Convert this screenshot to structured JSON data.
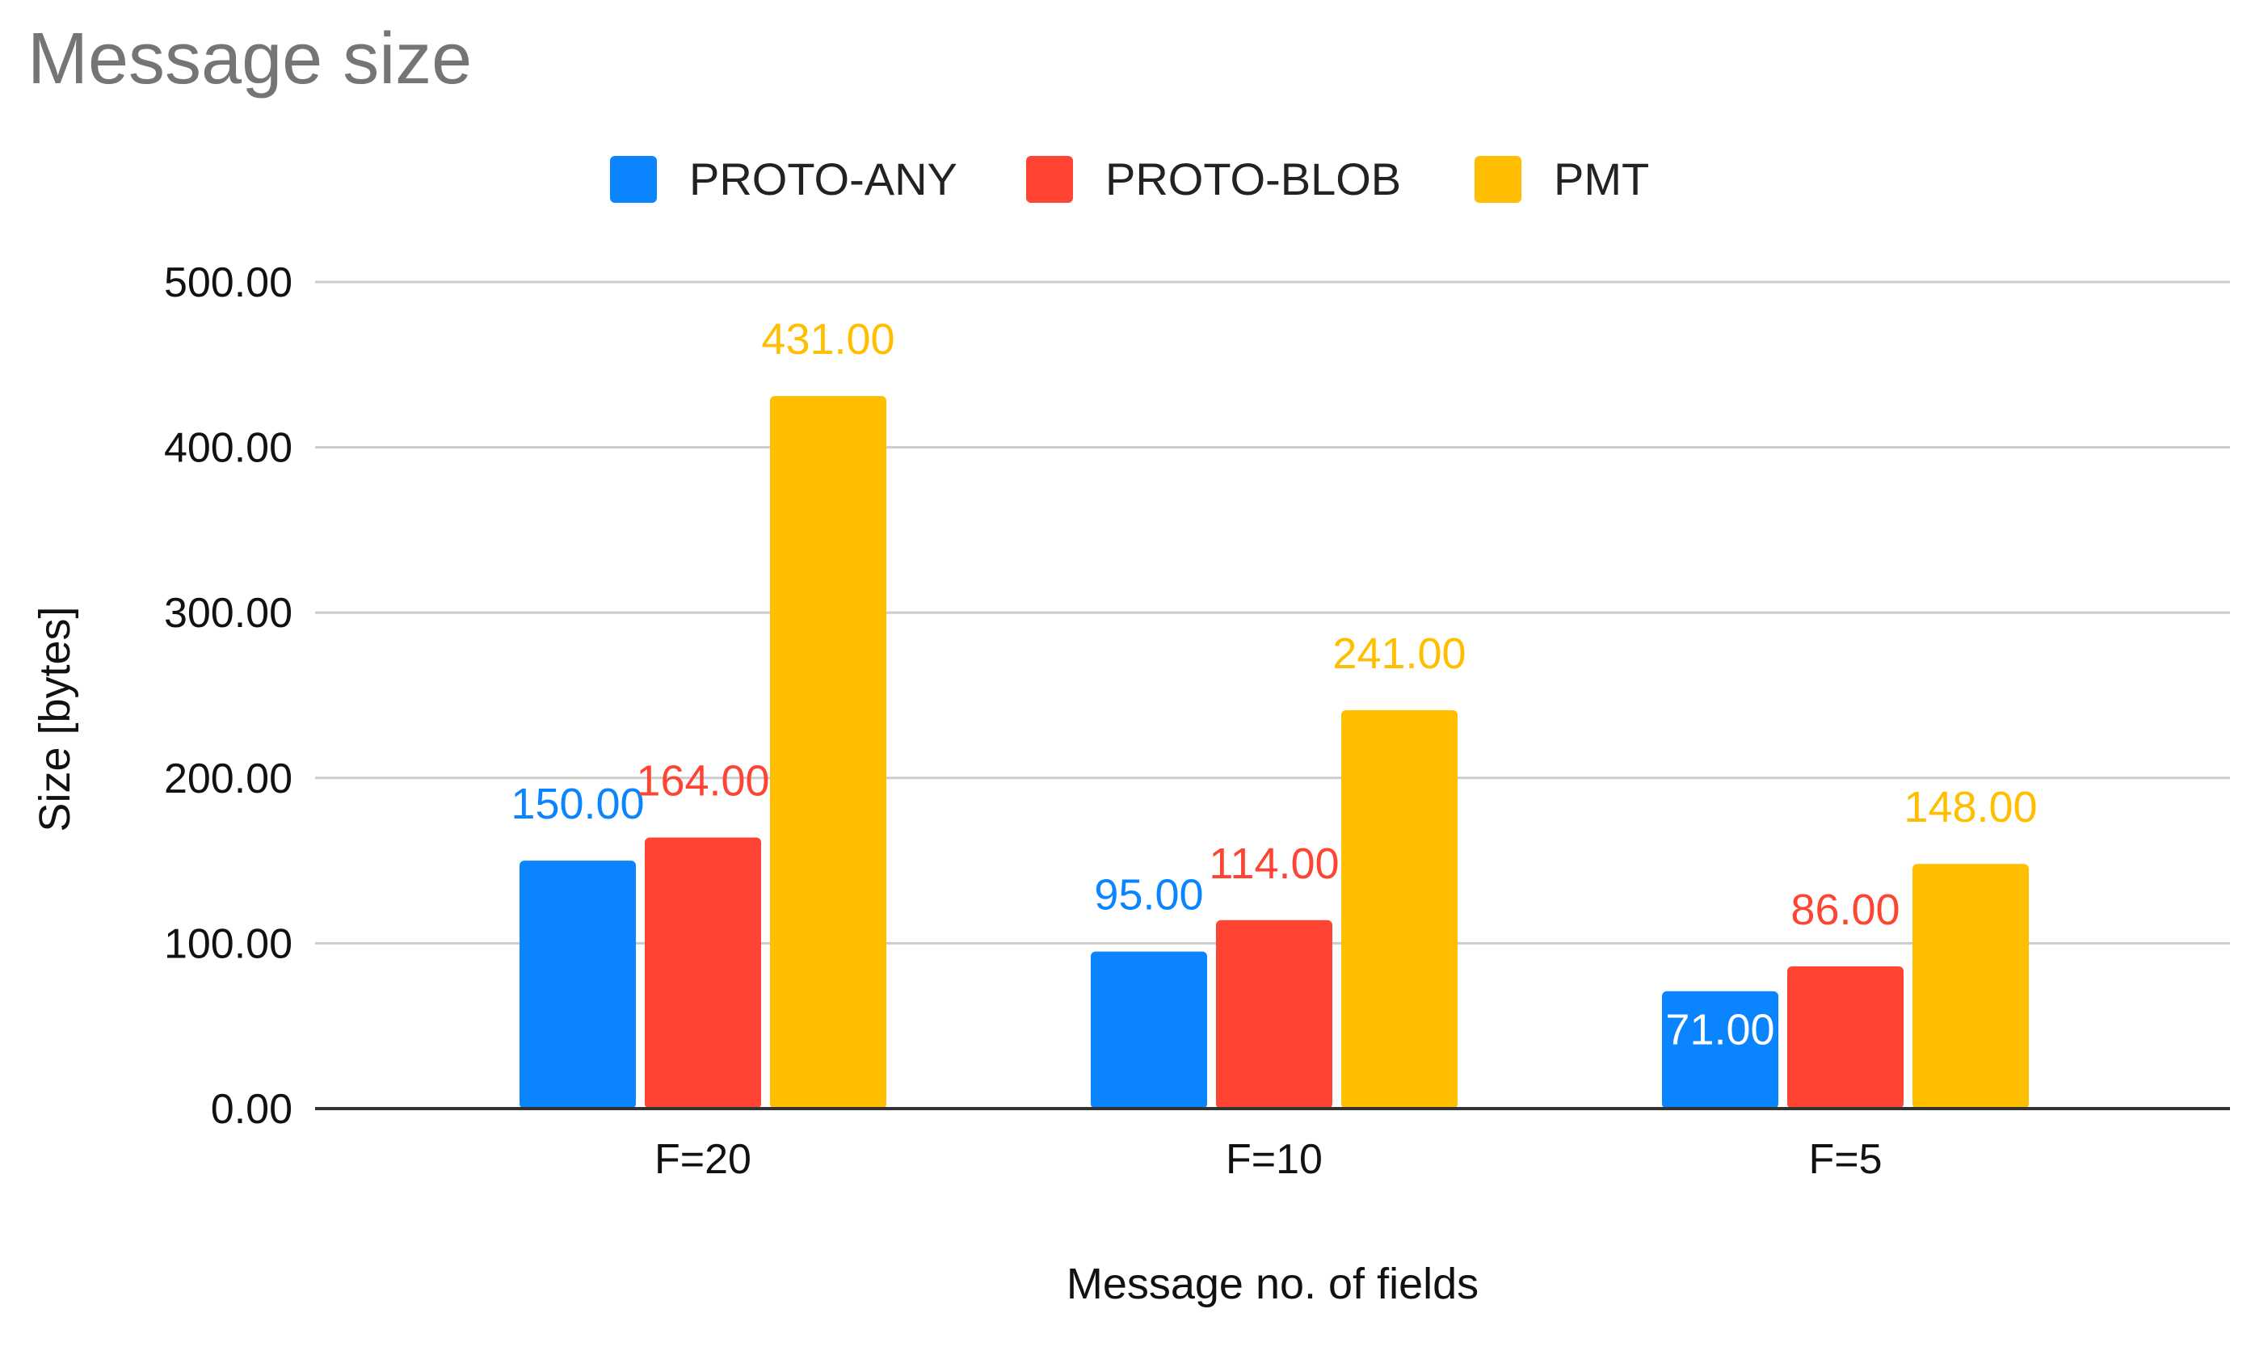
{
  "chart_data": {
    "type": "bar",
    "title": "Message size",
    "xlabel": "Message no. of fields",
    "ylabel": "Size [bytes]",
    "categories": [
      "F=20",
      "F=10",
      "F=5"
    ],
    "series": [
      {
        "name": "PROTO-ANY",
        "color": "#0a84ff",
        "values": [
          150,
          95,
          71
        ],
        "labels": [
          "150.00",
          "95.00",
          "71.00"
        ]
      },
      {
        "name": "PROTO-BLOB",
        "color": "#ff4433",
        "values": [
          164,
          114,
          86
        ],
        "labels": [
          "164.00",
          "114.00",
          "86.00"
        ]
      },
      {
        "name": "PMT",
        "color": "#ffbf00",
        "values": [
          431,
          241,
          148
        ],
        "labels": [
          "431.00",
          "241.00",
          "148.00"
        ]
      }
    ],
    "ylim": [
      0,
      500
    ],
    "yticks": [
      0,
      100,
      200,
      300,
      400,
      500
    ],
    "ytick_labels": [
      "0.00",
      "100.00",
      "200.00",
      "300.00",
      "400.00",
      "500.00"
    ],
    "grid": true,
    "legend_position": "top-center"
  }
}
